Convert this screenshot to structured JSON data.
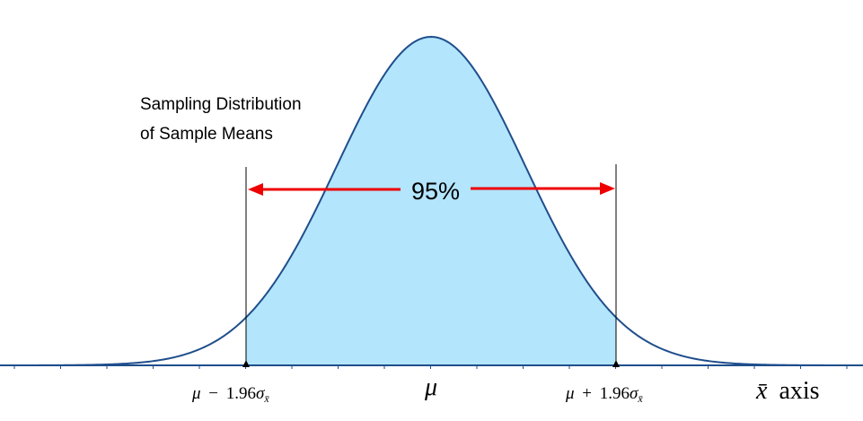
{
  "description_text": {
    "line1": "Sampling Distribution",
    "line2": "of Sample Means"
  },
  "interval": {
    "percent_label": "95%",
    "z": 1.96,
    "lower_mu": "μ",
    "lower_minus": "−",
    "lower_coef": "1.96",
    "lower_sigma": "σ",
    "lower_sub": "x̄",
    "center_label": "μ",
    "upper_mu": "μ",
    "upper_plus": "+",
    "upper_coef": "1.96",
    "upper_sigma": "σ",
    "upper_sub": "x̄"
  },
  "axis": {
    "xbar": "x̄",
    "axis_word": "axis"
  },
  "colors": {
    "curve": "#1f4e8c",
    "fill": "#b3e5fc",
    "arrow": "#ee0000",
    "axis": "#1f4e8c",
    "text": "#000000"
  }
}
